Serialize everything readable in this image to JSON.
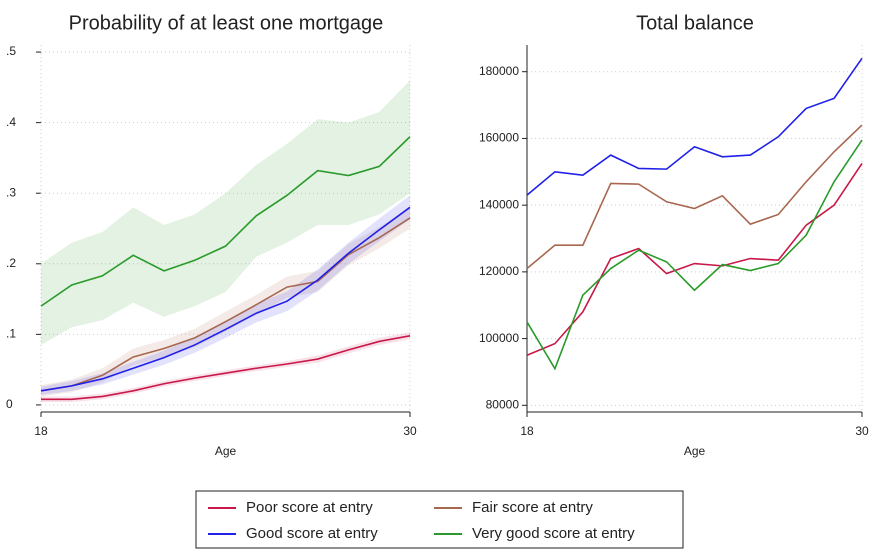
{
  "chart_data": [
    {
      "type": "line",
      "title": "Probability of at least one mortgage",
      "x_label": "Age",
      "x": [
        18,
        19,
        20,
        21,
        22,
        23,
        24,
        25,
        26,
        27,
        28,
        29,
        30
      ],
      "xlim": [
        18,
        30
      ],
      "xticks": [
        18,
        30
      ],
      "ylim": [
        -0.01,
        0.51
      ],
      "yticks": [
        0,
        {
          "value": 0.1,
          "label": ".1"
        },
        {
          "value": 0.2,
          "label": ".2"
        },
        {
          "value": 0.3,
          "label": ".3"
        },
        {
          "value": 0.4,
          "label": ".4"
        },
        {
          "value": 0.5,
          "label": ".5"
        }
      ],
      "grid": true,
      "series": [
        {
          "name": "Poor score at entry",
          "color": "#c8184a",
          "values": [
            0.008,
            0.008,
            0.012,
            0.02,
            0.03,
            0.038,
            0.045,
            0.052,
            0.058,
            0.065,
            0.078,
            0.09,
            0.098
          ],
          "lower": [
            0.004,
            0.004,
            0.008,
            0.016,
            0.026,
            0.034,
            0.041,
            0.048,
            0.054,
            0.06,
            0.073,
            0.085,
            0.093
          ],
          "upper": [
            0.012,
            0.012,
            0.016,
            0.024,
            0.034,
            0.042,
            0.049,
            0.056,
            0.062,
            0.07,
            0.083,
            0.095,
            0.103
          ]
        },
        {
          "name": "Fair score at entry",
          "color": "#a8674f",
          "values": [
            0.02,
            0.027,
            0.042,
            0.068,
            0.08,
            0.095,
            0.118,
            0.142,
            0.167,
            0.175,
            0.213,
            0.237,
            0.265
          ],
          "lower": [
            0.012,
            0.018,
            0.032,
            0.056,
            0.068,
            0.082,
            0.104,
            0.128,
            0.152,
            0.16,
            0.198,
            0.222,
            0.25
          ],
          "upper": [
            0.028,
            0.036,
            0.052,
            0.08,
            0.092,
            0.108,
            0.132,
            0.156,
            0.182,
            0.19,
            0.228,
            0.252,
            0.28
          ]
        },
        {
          "name": "Good score at entry",
          "color": "#2020e8",
          "values": [
            0.02,
            0.027,
            0.037,
            0.052,
            0.067,
            0.085,
            0.107,
            0.13,
            0.147,
            0.177,
            0.215,
            0.248,
            0.28
          ],
          "lower": [
            0.014,
            0.02,
            0.029,
            0.043,
            0.057,
            0.074,
            0.095,
            0.117,
            0.133,
            0.162,
            0.2,
            0.232,
            0.263
          ],
          "upper": [
            0.026,
            0.034,
            0.045,
            0.061,
            0.077,
            0.096,
            0.119,
            0.143,
            0.161,
            0.192,
            0.23,
            0.264,
            0.297
          ]
        },
        {
          "name": "Very good score at entry",
          "color": "#2a9a2a",
          "values": [
            0.14,
            0.17,
            0.183,
            0.212,
            0.19,
            0.205,
            0.225,
            0.268,
            0.297,
            0.332,
            0.325,
            0.338,
            0.38
          ],
          "lower": [
            0.085,
            0.11,
            0.12,
            0.145,
            0.125,
            0.14,
            0.16,
            0.21,
            0.23,
            0.255,
            0.255,
            0.27,
            0.3
          ],
          "upper": [
            0.2,
            0.23,
            0.245,
            0.28,
            0.255,
            0.27,
            0.3,
            0.34,
            0.37,
            0.405,
            0.4,
            0.415,
            0.46
          ]
        }
      ]
    },
    {
      "type": "line",
      "title": "Total balance",
      "x_label": "Age",
      "x": [
        18,
        19,
        20,
        21,
        22,
        23,
        24,
        25,
        26,
        27,
        28,
        29,
        30
      ],
      "xlim": [
        18,
        30
      ],
      "xticks": [
        18,
        30
      ],
      "ylim": [
        78000,
        188000
      ],
      "yticks": [
        80000,
        100000,
        120000,
        140000,
        160000,
        180000
      ],
      "grid": true,
      "series": [
        {
          "color": "#c8184a",
          "values": [
            95000,
            98500,
            108000,
            124000,
            127000,
            119500,
            122500,
            121800,
            124000,
            123500,
            134000,
            140000,
            152500
          ]
        },
        {
          "color": "#a8674f",
          "values": [
            121000,
            128000,
            128000,
            146500,
            146300,
            141000,
            139000,
            142800,
            134300,
            137200,
            147000,
            156000,
            164000
          ]
        },
        {
          "color": "#2020e8",
          "values": [
            143000,
            150000,
            149000,
            155000,
            151000,
            150800,
            157500,
            154500,
            155000,
            160500,
            169000,
            172000,
            184000
          ]
        },
        {
          "color": "#2a9a2a",
          "values": [
            105000,
            91000,
            113000,
            121000,
            126500,
            123000,
            114500,
            122200,
            120400,
            122500,
            131000,
            147000,
            159500
          ]
        }
      ]
    }
  ]
}
